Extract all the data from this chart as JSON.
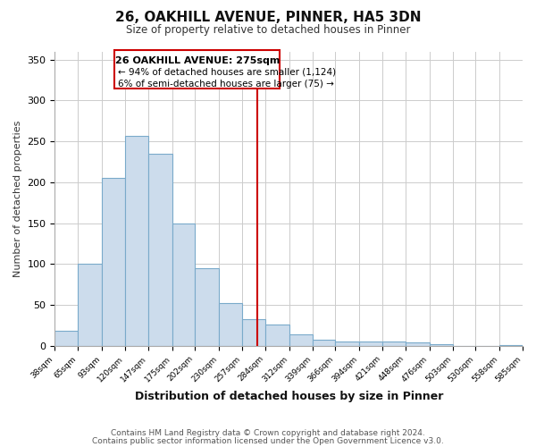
{
  "title": "26, OAKHILL AVENUE, PINNER, HA5 3DN",
  "subtitle": "Size of property relative to detached houses in Pinner",
  "xlabel": "Distribution of detached houses by size in Pinner",
  "ylabel": "Number of detached properties",
  "bar_color": "#ccdcec",
  "bar_edge_color": "#7aaaca",
  "bins": [
    38,
    65,
    93,
    120,
    147,
    175,
    202,
    230,
    257,
    284,
    312,
    339,
    366,
    394,
    421,
    448,
    476,
    503,
    530,
    558,
    585
  ],
  "values": [
    18,
    100,
    205,
    257,
    235,
    150,
    95,
    52,
    33,
    26,
    14,
    7,
    5,
    5,
    5,
    4,
    2,
    0,
    0,
    1
  ],
  "vline_x": 275,
  "vline_color": "#cc0000",
  "annotation_title": "26 OAKHILL AVENUE: 275sqm",
  "annotation_line1": "← 94% of detached houses are smaller (1,124)",
  "annotation_line2": "6% of semi-detached houses are larger (75) →",
  "annotation_box_color": "#cc0000",
  "ylim": [
    0,
    360
  ],
  "yticks": [
    0,
    50,
    100,
    150,
    200,
    250,
    300,
    350
  ],
  "footer1": "Contains HM Land Registry data © Crown copyright and database right 2024.",
  "footer2": "Contains public sector information licensed under the Open Government Licence v3.0.",
  "bg_color": "#ffffff",
  "plot_bg_color": "#ffffff"
}
